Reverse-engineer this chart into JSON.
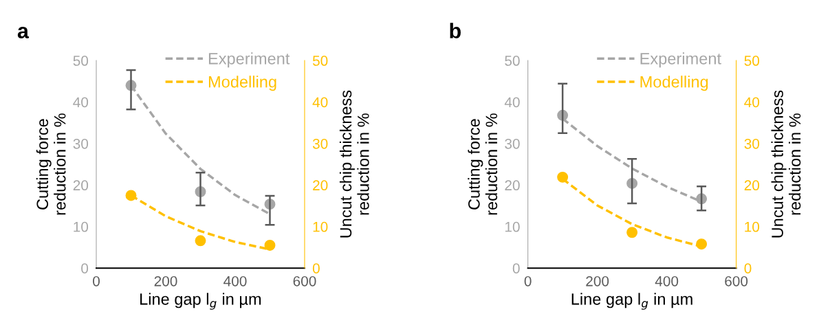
{
  "chart_data": [
    {
      "type": "scatter",
      "title": "a",
      "xlabel": "Line gap l$_{g}$ in µm",
      "ylabel": "Cutting force\nreduction in %",
      "y2label": "Uncut chip thickness\nreduction in %",
      "xlim": [
        0,
        600
      ],
      "xticks": [
        0,
        200,
        400,
        600
      ],
      "ylim": [
        0,
        50
      ],
      "yticks": [
        0,
        10,
        20,
        30,
        40,
        50
      ],
      "y2lim": [
        0,
        50
      ],
      "y2ticks": [
        0,
        10,
        20,
        30,
        40,
        50
      ],
      "grid": false,
      "legend": "top right",
      "series": [
        {
          "type": "line",
          "name": "Experiment",
          "color": "#a6a6a6",
          "line_style": "dashed",
          "marker": "none",
          "x": [
            100,
            200,
            300,
            400,
            500
          ],
          "values": [
            44,
            32.4,
            23.9,
            17.6,
            13
          ]
        },
        {
          "type": "line",
          "name": "Modelling",
          "color": "#ffc000",
          "line_style": "dashed",
          "marker": "none",
          "x": [
            100,
            200,
            300,
            400,
            500
          ],
          "values": [
            17.5,
            12.5,
            8.9,
            6.3,
            4.5
          ]
        },
        {
          "color": "#a6a6a6",
          "marker": "circle",
          "x": [
            100,
            300,
            500
          ],
          "values": [
            44,
            18.4,
            15.4
          ],
          "errors": [
            [
              38.2,
              47.7
            ],
            [
              15.1,
              23
            ],
            [
              10.4,
              17.4
            ]
          ]
        },
        {
          "color": "#ffc000",
          "marker": "circle",
          "x": [
            100,
            300,
            500
          ],
          "values": [
            17.5,
            6.6,
            5.5
          ]
        }
      ]
    },
    {
      "type": "scatter",
      "title": "b",
      "xlabel": "Line gap l$_{g}$ in µm",
      "ylabel": "Cutting force\nreduction in %",
      "y2label": "Uncut chip thickness\nreduction in %",
      "xlim": [
        0,
        600
      ],
      "xticks": [
        0,
        200,
        400,
        600
      ],
      "ylim": [
        0,
        50
      ],
      "yticks": [
        0,
        10,
        20,
        30,
        40,
        50
      ],
      "y2lim": [
        0,
        50
      ],
      "y2ticks": [
        0,
        10,
        20,
        30,
        40,
        50
      ],
      "grid": false,
      "legend": "top right",
      "series": [
        {
          "type": "line",
          "name": "Experiment",
          "color": "#a6a6a6",
          "line_style": "dashed",
          "marker": "none",
          "x": [
            100,
            200,
            300,
            400,
            500
          ],
          "values": [
            36,
            29.4,
            24,
            19.6,
            16
          ]
        },
        {
          "type": "line",
          "name": "Modelling",
          "color": "#ffc000",
          "line_style": "dashed",
          "marker": "none",
          "x": [
            100,
            200,
            300,
            400,
            500
          ],
          "values": [
            21.5,
            15.1,
            10.6,
            7.4,
            5.2
          ]
        },
        {
          "color": "#a6a6a6",
          "marker": "circle",
          "x": [
            100,
            300,
            500
          ],
          "values": [
            36.8,
            20.4,
            16.7
          ],
          "errors": [
            [
              32.5,
              44.4
            ],
            [
              15.6,
              26.3
            ],
            [
              13.9,
              19.7
            ]
          ]
        },
        {
          "color": "#ffc000",
          "marker": "circle",
          "x": [
            100,
            300,
            500
          ],
          "values": [
            21.9,
            8.6,
            5.8
          ]
        }
      ]
    }
  ]
}
